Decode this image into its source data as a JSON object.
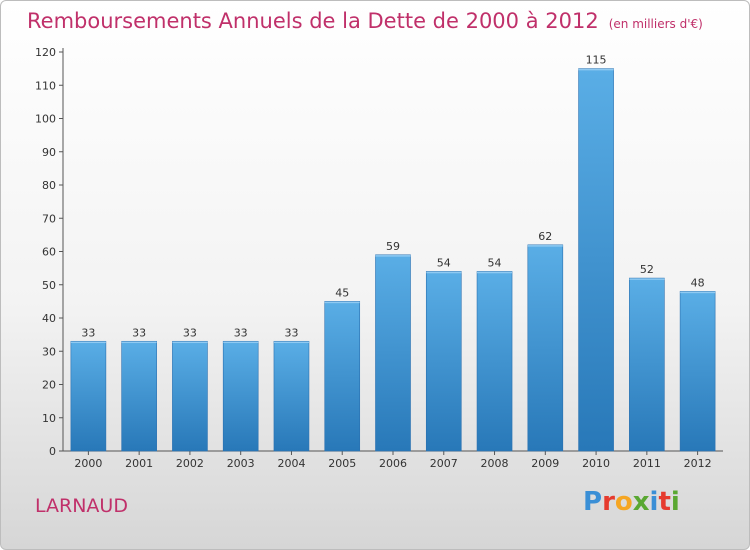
{
  "title": "Remboursements Annuels de la Dette de 2000 à 2012",
  "unit": "(en milliers d'€)",
  "commune": "LARNAUD",
  "brand": {
    "text": "Proxiti",
    "colors": [
      "#3a8fd6",
      "#e63b2e",
      "#f5a623",
      "#5aa832",
      "#3a8fd6",
      "#e63b2e",
      "#5aa832"
    ]
  },
  "colors": {
    "bar_light": "#5aaee6",
    "bar_dark": "#2878b8",
    "title": "#c0306a"
  },
  "chart_data": {
    "type": "bar",
    "categories": [
      "2000",
      "2001",
      "2002",
      "2003",
      "2004",
      "2005",
      "2006",
      "2007",
      "2008",
      "2009",
      "2010",
      "2011",
      "2012"
    ],
    "values": [
      33,
      33,
      33,
      33,
      33,
      45,
      59,
      54,
      54,
      62,
      115,
      52,
      48
    ],
    "ylim": [
      0,
      120
    ],
    "yticks": [
      0,
      10,
      20,
      30,
      40,
      50,
      60,
      70,
      80,
      90,
      100,
      110,
      120
    ],
    "grid": false
  }
}
